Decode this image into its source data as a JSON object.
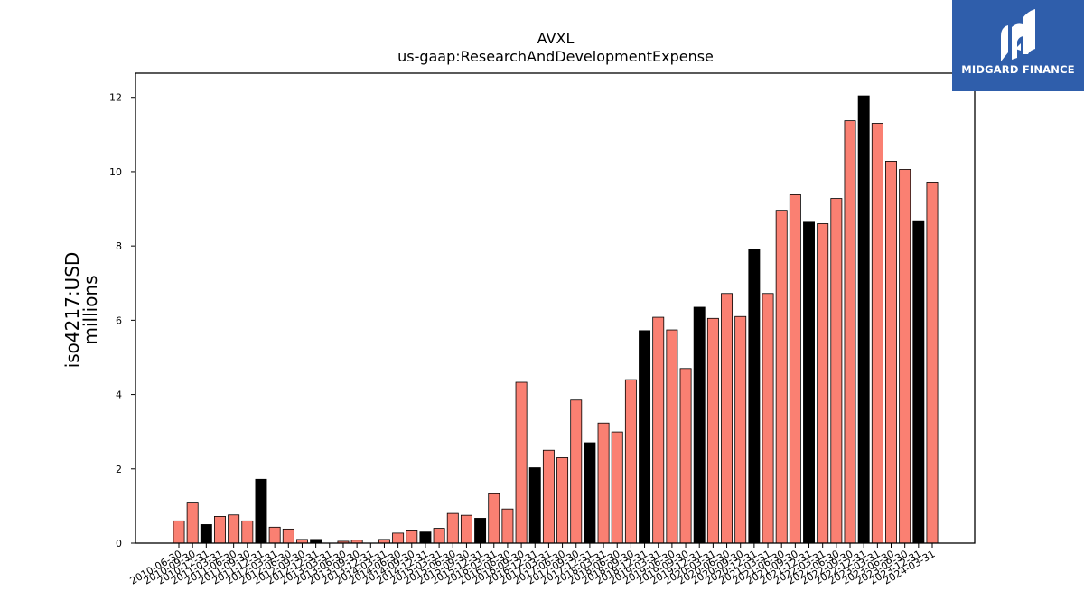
{
  "chart_data": {
    "type": "bar",
    "title": "AVXL",
    "subtitle": "us-gaap:ResearchAndDevelopmentExpense",
    "ylabel": "iso4217:USD",
    "ylabel2": "millions",
    "ylim": [
      0,
      12.65
    ],
    "yticks": [
      0,
      2,
      4,
      6,
      8,
      10,
      12
    ],
    "grid": false,
    "colors": {
      "quarter": "#fa8072",
      "annual": "#000000",
      "edge": "#000000"
    },
    "categories": [
      "2010-06-30",
      "2010-09-30",
      "2010-12-31",
      "2011-03-31",
      "2011-06-30",
      "2011-09-30",
      "2011-12-31",
      "2012-03-31",
      "2012-06-30",
      "2012-09-30",
      "2012-12-31",
      "2013-03-31",
      "2013-06-30",
      "2013-09-30",
      "2013-12-31",
      "2014-03-31",
      "2014-06-30",
      "2014-09-30",
      "2014-12-31",
      "2015-03-31",
      "2015-06-30",
      "2015-09-30",
      "2015-12-31",
      "2016-03-31",
      "2016-06-30",
      "2016-09-30",
      "2016-12-31",
      "2017-03-31",
      "2017-06-30",
      "2017-09-30",
      "2017-12-31",
      "2018-03-31",
      "2018-06-30",
      "2018-09-30",
      "2018-12-31",
      "2019-03-31",
      "2019-06-30",
      "2019-09-30",
      "2019-12-31",
      "2020-03-31",
      "2020-06-30",
      "2020-09-30",
      "2020-12-31",
      "2021-03-31",
      "2021-06-30",
      "2021-09-30",
      "2021-12-31",
      "2022-03-31",
      "2022-06-30",
      "2022-09-30",
      "2022-12-31",
      "2023-03-31",
      "2023-06-30",
      "2023-09-30",
      "2023-12-31",
      "2024-03-31"
    ],
    "values": [
      0.6,
      1.08,
      0.5,
      0.72,
      0.76,
      0.6,
      1.72,
      0.43,
      0.38,
      0.1,
      0.1,
      0.0,
      0.05,
      0.08,
      0.0,
      0.1,
      0.27,
      0.33,
      0.3,
      0.4,
      0.8,
      0.75,
      0.67,
      1.33,
      0.92,
      4.33,
      2.03,
      2.5,
      2.3,
      3.85,
      2.7,
      3.23,
      2.99,
      4.4,
      5.72,
      6.08,
      5.74,
      4.7,
      6.35,
      6.05,
      6.72,
      6.1,
      7.92,
      6.72,
      8.96,
      9.38,
      8.64,
      8.6,
      9.28,
      11.37,
      12.04,
      11.3,
      10.28,
      10.06,
      8.68,
      9.72
    ],
    "annual": [
      false,
      false,
      true,
      false,
      false,
      false,
      true,
      false,
      false,
      false,
      true,
      false,
      false,
      false,
      true,
      false,
      false,
      false,
      true,
      false,
      false,
      false,
      true,
      false,
      false,
      false,
      true,
      false,
      false,
      false,
      true,
      false,
      false,
      false,
      true,
      false,
      false,
      false,
      true,
      false,
      false,
      false,
      true,
      false,
      false,
      false,
      true,
      false,
      false,
      false,
      true,
      false,
      false,
      false,
      true,
      false
    ]
  },
  "logo": {
    "text": "MIDGARD FINANCE"
  }
}
